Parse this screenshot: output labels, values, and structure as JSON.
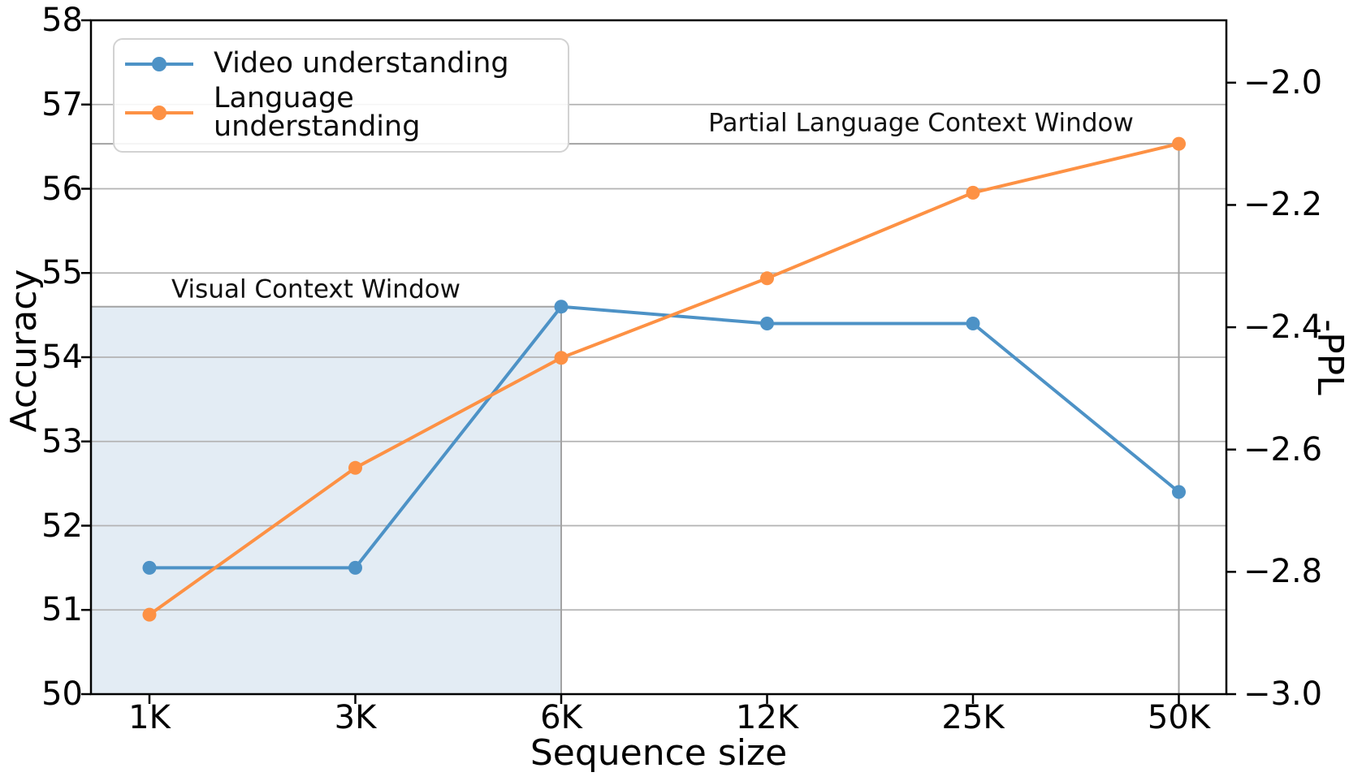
{
  "chart_data": {
    "type": "line",
    "title": "",
    "categories": [
      "1K",
      "3K",
      "6K",
      "12K",
      "25K",
      "50K"
    ],
    "series": [
      {
        "name": "Video understanding",
        "axis": "left",
        "color": "#4d92c6",
        "marker": "circle",
        "values": [
          51.5,
          51.5,
          54.6,
          54.4,
          54.4,
          52.4
        ]
      },
      {
        "name": "Language understanding",
        "axis": "right",
        "color": "#fd9144",
        "marker": "circle",
        "values": [
          -2.87,
          -2.63,
          -2.45,
          -2.32,
          -2.18,
          -2.1
        ]
      }
    ],
    "x_axis": {
      "label": "Sequence size"
    },
    "left_axis": {
      "label": "Accuracy",
      "lim": [
        50,
        58
      ],
      "ticks": [
        50,
        51,
        52,
        53,
        54,
        55,
        56,
        57,
        58
      ]
    },
    "right_axis": {
      "label": "-PPL",
      "lim": [
        -3.0,
        -1.898
      ],
      "tick_values": [
        -3.0,
        -2.8,
        -2.6,
        -2.4,
        -2.2,
        -2.0
      ],
      "tick_labels": [
        "−3.0",
        "−2.8",
        "−2.6",
        "−2.4",
        "−2.2",
        "−2.0"
      ]
    },
    "grid": {
      "horizontal_on_left_axis_integers": true,
      "color": "#b3b3b3"
    },
    "legend_position": "upper-left",
    "annotations": [
      {
        "text": "Visual Context Window",
        "region": {
          "x_from": "axis-left",
          "x_to": "6K",
          "top_value": 54.6,
          "top_axis": "left",
          "fill": "rgba(70,130,180,0.15)",
          "border": "#a3a3a3"
        }
      },
      {
        "text": "Partial Language Context Window",
        "region": {
          "x_from": "axis-left",
          "x_to": "50K",
          "top_value": -2.1,
          "top_axis": "right",
          "fill": "none",
          "border": "#a3a3a3"
        }
      }
    ]
  },
  "legend": {
    "items": [
      {
        "label": "Video understanding"
      },
      {
        "label": "Language understanding"
      }
    ]
  },
  "colors": {
    "video_series": "#4d92c6",
    "language_series": "#fd9144",
    "gridline": "#b3b3b3",
    "region_border": "#a3a3a3",
    "region_fill": "rgba(70,130,180,0.15)",
    "spine": "#000000"
  }
}
